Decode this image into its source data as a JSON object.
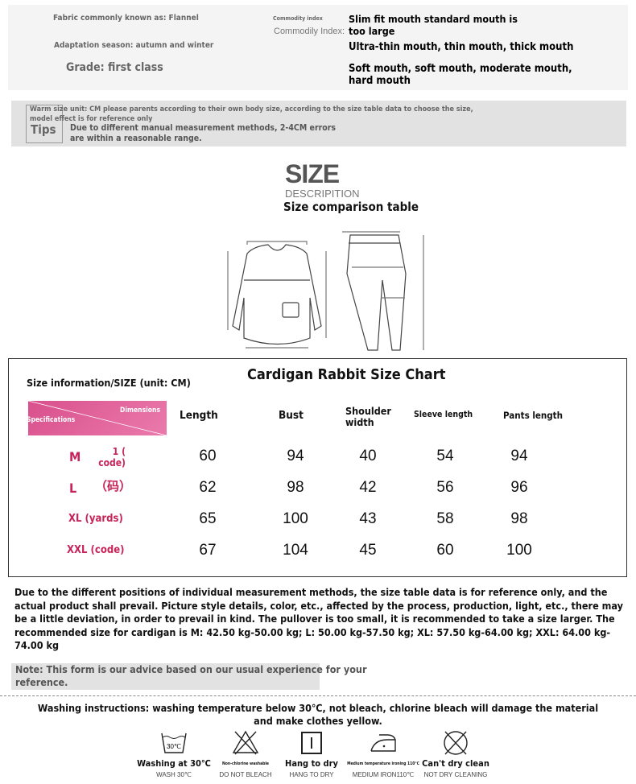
{
  "specs": {
    "fabric": "Fabric commonly known as: Flannel",
    "season": "Adaptation season: autumn and winter",
    "grade": "Grade: first class",
    "commodity_index_small": "Commodity index",
    "commodity_index_label": "Commodily Index:",
    "fit_line1": "Slim fit mouth standard mouth is",
    "fit_line2": "too large",
    "thickness": "Ultra-thin mouth, thin mouth, thick mouth",
    "softness_line1": "Soft mouth, soft mouth, moderate mouth,",
    "softness_line2": "hard mouth"
  },
  "tips": {
    "label": "Tips",
    "line1": "Warm size unit: CM please parents according to their own body size, according to the size table data to choose the size,",
    "line2": "model effect is for reference only",
    "line3": "Due to different manual measurement methods, 2-4CM errors",
    "line4": "are within a reasonable range."
  },
  "size_section": {
    "title": "SIZE",
    "subtitle": "DESCRIPITION",
    "heading": "Size comparison table"
  },
  "size_chart": {
    "info": "Size information/SIZE (unit: CM)",
    "title": "Cardigan Rabbit Size Chart",
    "corner_dimensions": "Dimensions",
    "corner_specifications": "Specifications",
    "header_color": "#e2649a",
    "label_color": "#c8245a",
    "columns": [
      "Length",
      "Bust",
      "Shoulder width",
      "Sleeve length",
      "Pants length"
    ],
    "rows": [
      {
        "size": "M",
        "note": "1 ( code)",
        "values": [
          "60",
          "94",
          "40",
          "54",
          "94"
        ]
      },
      {
        "size": "L",
        "note": "（码）",
        "values": [
          "62",
          "98",
          "42",
          "56",
          "96"
        ]
      },
      {
        "size": "XL (yards)",
        "note": "",
        "values": [
          "65",
          "100",
          "43",
          "58",
          "98"
        ]
      },
      {
        "size": "XXL (code)",
        "note": "",
        "values": [
          "67",
          "104",
          "45",
          "60",
          "100"
        ]
      }
    ]
  },
  "disclaimer": "Due to the different positions of individual measurement methods, the size table data is for reference only, and the actual product shall prevail. Picture style details, color, etc., affected by the process, production, light, etc., there may be a little deviation, in order to prevail in kind. The pullover is too small, it is recommended to take a size larger. The recommended size for cardigan is M: 42.50 kg-50.00 kg; L: 50.00 kg-57.50 kg; XL: 57.50 kg-64.00 kg; XXL: 64.00 kg-74.00 kg",
  "note": "Note: This form is our advice based on our usual experience for your reference.",
  "washing": {
    "text": "Washing instructions: washing temperature below 30℃, not bleach, chlorine bleach will damage the material and make clothes yellow.",
    "icons": [
      {
        "icon": "wash-30-icon",
        "label": "Washing at 30℃",
        "sub": "WASH 30℃",
        "small": false,
        "glyph": "30℃"
      },
      {
        "icon": "no-bleach-icon",
        "label": "Non-chlorine washable",
        "sub": "DO NOT BLEACH",
        "small": true
      },
      {
        "icon": "hang-dry-icon",
        "label": "Hang to dry",
        "sub": "HANG TO DRY",
        "small": false
      },
      {
        "icon": "iron-medium-icon",
        "label": "Medium temperature ironing 110℃",
        "sub": "MEDIUM IRON110℃",
        "small": true
      },
      {
        "icon": "no-dry-clean-icon",
        "label": "Can't dry clean",
        "sub": "NOT DRY CLEANING",
        "small": false
      }
    ]
  }
}
